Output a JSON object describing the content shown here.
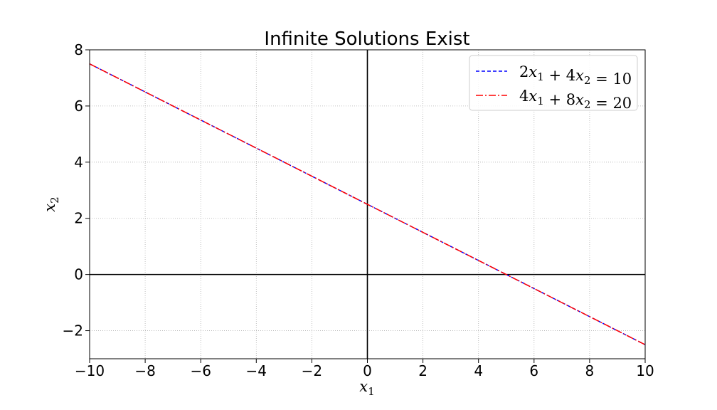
{
  "chart_data": {
    "type": "line",
    "title": "Infinite Solutions Exist",
    "xlabel": "x1",
    "ylabel": "x2",
    "xlim": [
      -10,
      10
    ],
    "ylim": [
      -3,
      8
    ],
    "xticks": [
      -10,
      -8,
      -6,
      -4,
      -2,
      0,
      2,
      4,
      6,
      8,
      10
    ],
    "yticks": [
      -2,
      0,
      2,
      4,
      6,
      8
    ],
    "grid": true,
    "legend_position": "upper right",
    "reference_lines": {
      "x": 0,
      "y": 0,
      "color": "#000000"
    },
    "series": [
      {
        "name": "2x1 + 4x2 = 10",
        "style": "dashed",
        "color": "#0000ff",
        "x": [
          -10,
          10
        ],
        "y": [
          7.5,
          -2.5
        ]
      },
      {
        "name": "4x1 + 8x2 = 20",
        "style": "dashdot",
        "color": "#ff0000",
        "x": [
          -10,
          10
        ],
        "y": [
          7.5,
          -2.5
        ]
      }
    ]
  }
}
